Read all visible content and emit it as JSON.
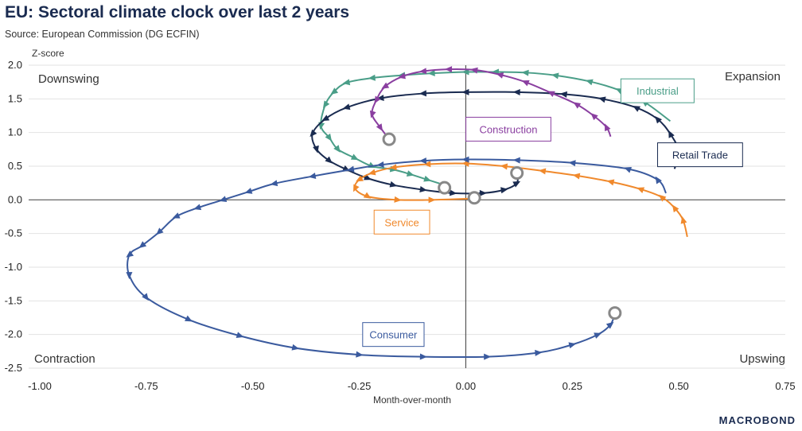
{
  "header": {
    "title": "EU: Sectoral climate clock over last 2 years",
    "subtitle": "Source: European Commission (DG ECFIN)",
    "brand": "MACROBOND"
  },
  "chart_data": {
    "type": "line",
    "title": "EU: Sectoral climate clock over last 2 years",
    "xlabel": "Month-over-month",
    "ylabel": "Z-score",
    "xlim": [
      -1.0,
      0.75
    ],
    "ylim": [
      -2.5,
      2.0
    ],
    "x_ticks": [
      -1.0,
      -0.75,
      -0.5,
      -0.25,
      0.0,
      0.25,
      0.5,
      0.75
    ],
    "x_tick_labels": [
      "-1.00",
      "-0.75",
      "-0.50",
      "-0.25",
      "0.00",
      "0.25",
      "0.50",
      "0.75"
    ],
    "y_ticks": [
      2.0,
      1.5,
      1.0,
      0.5,
      0.0,
      -0.5,
      -1.0,
      -1.5,
      -2.0,
      -2.5
    ],
    "y_tick_labels": [
      "2.0",
      "1.5",
      "1.0",
      "0.5",
      "0.0",
      "-0.5",
      "-1.0",
      "-1.5",
      "-2.0",
      "-2.5"
    ],
    "grid": "horizontal",
    "quadrants": {
      "top_left": "Downswing",
      "top_right": "Expansion",
      "bottom_left": "Contraction",
      "bottom_right": "Upswing"
    },
    "series": [
      {
        "name": "Industrial",
        "color": "#4a9e88",
        "label_at": [
          0.45,
          1.62
        ],
        "points": [
          [
            0.48,
            1.17
          ],
          [
            0.42,
            1.45
          ],
          [
            0.36,
            1.63
          ],
          [
            0.29,
            1.76
          ],
          [
            0.21,
            1.85
          ],
          [
            0.14,
            1.89
          ],
          [
            0.07,
            1.9
          ],
          [
            0.0,
            1.9
          ],
          [
            -0.08,
            1.88
          ],
          [
            -0.15,
            1.85
          ],
          [
            -0.22,
            1.81
          ],
          [
            -0.28,
            1.74
          ],
          [
            -0.31,
            1.6
          ],
          [
            -0.33,
            1.41
          ],
          [
            -0.34,
            1.1
          ],
          [
            -0.32,
            0.92
          ],
          [
            -0.3,
            0.75
          ],
          [
            -0.26,
            0.62
          ],
          [
            -0.22,
            0.5
          ],
          [
            -0.17,
            0.45
          ],
          [
            -0.13,
            0.38
          ],
          [
            -0.09,
            0.3
          ],
          [
            -0.05,
            0.22
          ]
        ],
        "arrow_every": 1
      },
      {
        "name": "Retail Trade",
        "color": "#1a2b50",
        "label_at": [
          0.55,
          0.67
        ],
        "points": [
          [
            0.49,
            0.46
          ],
          [
            0.5,
            0.72
          ],
          [
            0.48,
            0.98
          ],
          [
            0.45,
            1.2
          ],
          [
            0.4,
            1.37
          ],
          [
            0.32,
            1.5
          ],
          [
            0.23,
            1.57
          ],
          [
            0.12,
            1.6
          ],
          [
            0.0,
            1.6
          ],
          [
            -0.1,
            1.58
          ],
          [
            -0.2,
            1.51
          ],
          [
            -0.28,
            1.37
          ],
          [
            -0.33,
            1.2
          ],
          [
            -0.36,
            0.98
          ],
          [
            -0.35,
            0.75
          ],
          [
            -0.32,
            0.58
          ],
          [
            -0.28,
            0.45
          ],
          [
            -0.23,
            0.32
          ],
          [
            -0.17,
            0.22
          ],
          [
            -0.1,
            0.15
          ],
          [
            -0.03,
            0.1
          ],
          [
            0.04,
            0.1
          ],
          [
            0.09,
            0.15
          ],
          [
            0.12,
            0.25
          ],
          [
            0.12,
            0.4
          ]
        ],
        "arrow_every": 1
      },
      {
        "name": "Construction",
        "color": "#8a3fa0",
        "label_at": [
          0.1,
          1.05
        ],
        "points": [
          [
            0.34,
            0.94
          ],
          [
            0.33,
            1.08
          ],
          [
            0.3,
            1.25
          ],
          [
            0.26,
            1.42
          ],
          [
            0.2,
            1.59
          ],
          [
            0.14,
            1.75
          ],
          [
            0.08,
            1.86
          ],
          [
            0.02,
            1.93
          ],
          [
            -0.04,
            1.94
          ],
          [
            -0.1,
            1.91
          ],
          [
            -0.15,
            1.83
          ],
          [
            -0.19,
            1.68
          ],
          [
            -0.21,
            1.48
          ],
          [
            -0.22,
            1.27
          ],
          [
            -0.2,
            1.07
          ],
          [
            -0.18,
            0.9
          ]
        ],
        "arrow_every": 1
      },
      {
        "name": "Service",
        "color": "#f0892c",
        "label_at": [
          -0.15,
          -0.33
        ],
        "points": [
          [
            0.52,
            -0.55
          ],
          [
            0.51,
            -0.3
          ],
          [
            0.49,
            -0.12
          ],
          [
            0.46,
            0.04
          ],
          [
            0.41,
            0.16
          ],
          [
            0.34,
            0.27
          ],
          [
            0.26,
            0.36
          ],
          [
            0.18,
            0.43
          ],
          [
            0.09,
            0.5
          ],
          [
            0.0,
            0.54
          ],
          [
            -0.09,
            0.53
          ],
          [
            -0.17,
            0.48
          ],
          [
            -0.22,
            0.4
          ],
          [
            -0.25,
            0.3
          ],
          [
            -0.26,
            0.17
          ],
          [
            -0.23,
            0.05
          ],
          [
            -0.16,
            0.0
          ],
          [
            -0.08,
            0.0
          ],
          [
            0.02,
            0.02
          ]
        ],
        "arrow_every": 1
      },
      {
        "name": "Consumer",
        "color": "#3a5a9e",
        "label_at": [
          -0.17,
          -2.0
        ],
        "points": [
          [
            0.47,
            0.1
          ],
          [
            0.45,
            0.3
          ],
          [
            0.38,
            0.46
          ],
          [
            0.25,
            0.55
          ],
          [
            0.12,
            0.59
          ],
          [
            0.0,
            0.6
          ],
          [
            -0.1,
            0.58
          ],
          [
            -0.2,
            0.52
          ],
          [
            -0.27,
            0.45
          ],
          [
            -0.36,
            0.35
          ],
          [
            -0.45,
            0.24
          ],
          [
            -0.51,
            0.12
          ],
          [
            -0.57,
            0.0
          ],
          [
            -0.63,
            -0.12
          ],
          [
            -0.68,
            -0.25
          ],
          [
            -0.72,
            -0.48
          ],
          [
            -0.76,
            -0.68
          ],
          [
            -0.79,
            -0.82
          ],
          [
            -0.79,
            -1.12
          ],
          [
            -0.75,
            -1.45
          ],
          [
            -0.65,
            -1.78
          ],
          [
            -0.53,
            -2.02
          ],
          [
            -0.4,
            -2.2
          ],
          [
            -0.25,
            -2.3
          ],
          [
            -0.1,
            -2.33
          ],
          [
            0.05,
            -2.33
          ],
          [
            0.17,
            -2.27
          ],
          [
            0.25,
            -2.15
          ],
          [
            0.31,
            -2.0
          ],
          [
            0.34,
            -1.85
          ],
          [
            0.35,
            -1.68
          ]
        ],
        "arrow_every": 1
      }
    ],
    "end_markers": [
      [
        0.12,
        0.4
      ],
      [
        -0.05,
        0.18
      ],
      [
        0.02,
        0.03
      ],
      [
        -0.18,
        0.9
      ],
      [
        0.35,
        -1.68
      ]
    ]
  }
}
